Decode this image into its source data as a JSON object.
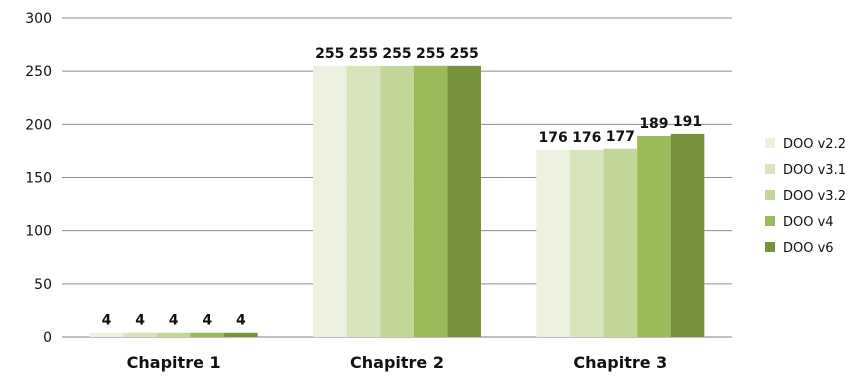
{
  "chart_data": {
    "type": "bar",
    "categories": [
      "Chapitre 1",
      "Chapitre 2",
      "Chapitre 3"
    ],
    "series": [
      {
        "name": "DOO v2.2",
        "values": [
          4,
          255,
          176
        ],
        "color": "#ebf1de"
      },
      {
        "name": "DOO v3.1",
        "values": [
          4,
          255,
          176
        ],
        "color": "#d8e4bc"
      },
      {
        "name": "DOO v3.2",
        "values": [
          4,
          255,
          177
        ],
        "color": "#c4d79b"
      },
      {
        "name": "DOO v4",
        "values": [
          4,
          255,
          189
        ],
        "color": "#9bbb59"
      },
      {
        "name": "DOO v6",
        "values": [
          4,
          255,
          191
        ],
        "color": "#76933c"
      }
    ],
    "ylim": [
      0,
      300
    ],
    "yticks": [
      0,
      50,
      100,
      150,
      200,
      250,
      300
    ],
    "grid": true,
    "legend": "right",
    "data_labels": true
  }
}
